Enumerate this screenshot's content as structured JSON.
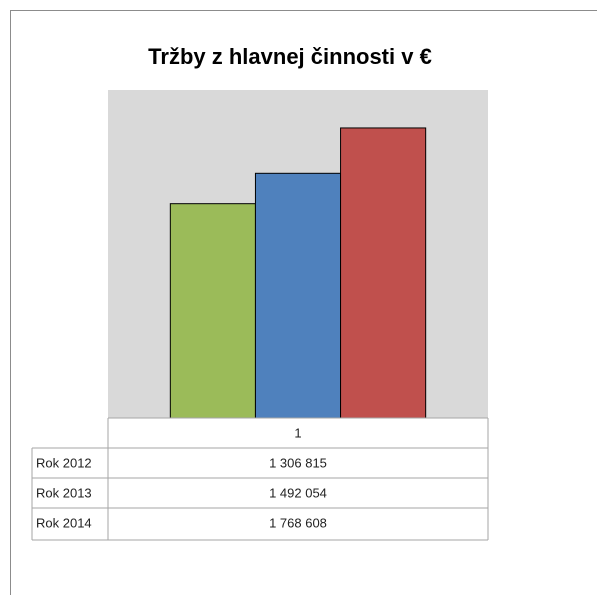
{
  "chart_data": {
    "type": "bar",
    "title": "Tržby  z  hlavnej činnosti v €",
    "categories": [
      "1"
    ],
    "series": [
      {
        "name": "Rok 2012",
        "color": "#9bbb59",
        "values": [
          1306815
        ],
        "value_labels": [
          "1 306 815"
        ]
      },
      {
        "name": "Rok 2013",
        "color": "#4f81bd",
        "values": [
          1492054
        ],
        "value_labels": [
          "1 492 054"
        ]
      },
      {
        "name": "Rok 2014",
        "color": "#c0504d",
        "values": [
          1768608
        ],
        "value_labels": [
          "1 768 608"
        ]
      }
    ],
    "ylim": [
      0,
      2000000
    ]
  }
}
